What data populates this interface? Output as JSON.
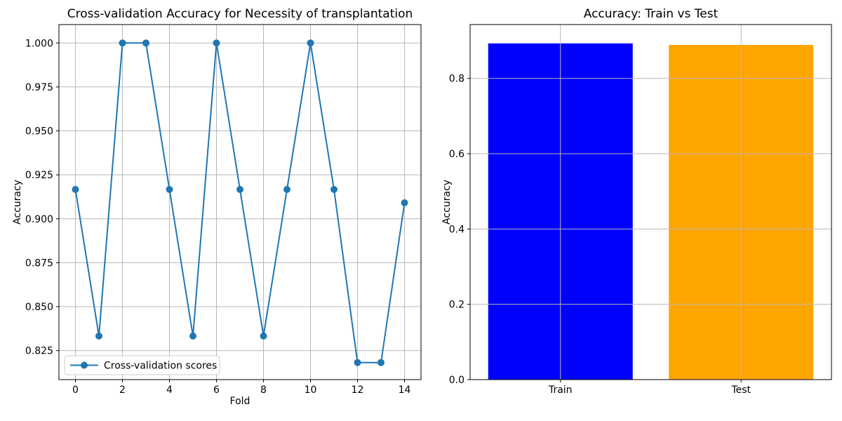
{
  "figure": {
    "background": "#ffffff",
    "grid_color": "#b8b8b8",
    "spine_color": "#000000",
    "text_color": "#000000"
  },
  "chart_data": [
    {
      "id": "cv",
      "type": "line",
      "title": "Cross-validation Accuracy for Necessity of transplantation",
      "xlabel": "Fold",
      "ylabel": "Accuracy",
      "x": [
        0,
        1,
        2,
        3,
        4,
        5,
        6,
        7,
        8,
        9,
        10,
        11,
        12,
        13,
        14
      ],
      "values": [
        0.9167,
        0.8333,
        1.0,
        1.0,
        0.9167,
        0.8333,
        1.0,
        0.9167,
        0.8333,
        0.9167,
        1.0,
        0.9167,
        0.8182,
        0.8182,
        0.9091
      ],
      "line_color": "#1f77b4",
      "marker": "circle",
      "xlim": [
        -0.7,
        14.7
      ],
      "ylim": [
        0.8085,
        1.0105
      ],
      "xticks": {
        "values": [
          0,
          2,
          4,
          6,
          8,
          10,
          12,
          14
        ],
        "labels": [
          "0",
          "2",
          "4",
          "6",
          "8",
          "10",
          "12",
          "14"
        ]
      },
      "yticks": {
        "values": [
          0.825,
          0.85,
          0.875,
          0.9,
          0.925,
          0.95,
          0.975,
          1.0
        ],
        "labels": [
          "0.825",
          "0.850",
          "0.875",
          "0.900",
          "0.925",
          "0.950",
          "0.975",
          "1.000"
        ]
      },
      "grid": true,
      "grid_over_data": false,
      "legend": {
        "label": "Cross-validation scores",
        "position": "lower left"
      }
    },
    {
      "id": "bar",
      "type": "bar",
      "title": "Accuracy: Train vs Test",
      "xlabel": "",
      "ylabel": "Accuracy",
      "categories": [
        "Train",
        "Test"
      ],
      "values": [
        0.893,
        0.889
      ],
      "bar_colors": [
        "#0000ff",
        "#ffa500"
      ],
      "bar_width": 0.8,
      "xlim": [
        -0.5,
        1.5
      ],
      "ylim": [
        0,
        0.943
      ],
      "xticks": {
        "values": [
          0,
          1
        ],
        "labels": [
          "Train",
          "Test"
        ]
      },
      "yticks": {
        "values": [
          0,
          0.2,
          0.4,
          0.6,
          0.8
        ],
        "labels": [
          "0.0",
          "0.2",
          "0.4",
          "0.6",
          "0.8"
        ]
      },
      "grid": true,
      "grid_over_data": true,
      "legend": null
    }
  ]
}
